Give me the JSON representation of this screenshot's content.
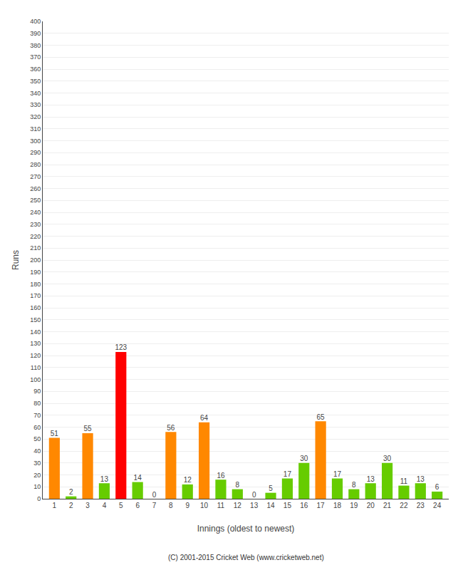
{
  "chart_data": {
    "type": "bar",
    "xlabel": "Innings (oldest to newest)",
    "ylabel": "Runs",
    "annotations": [
      "(C) 2001-2015 Cricket Web (www.cricketweb.net)"
    ],
    "x": [
      1,
      2,
      3,
      4,
      5,
      6,
      7,
      8,
      9,
      10,
      11,
      12,
      13,
      14,
      15,
      16,
      17,
      18,
      19,
      20,
      21,
      22,
      23,
      24
    ],
    "values": [
      51,
      2,
      55,
      13,
      123,
      14,
      0,
      56,
      12,
      64,
      16,
      8,
      0,
      5,
      17,
      30,
      65,
      17,
      8,
      13,
      30,
      11,
      13,
      6
    ],
    "colors": [
      "#ff8800",
      "#66cc00",
      "#ff8800",
      "#66cc00",
      "#ff0000",
      "#66cc00",
      "#66cc00",
      "#ff8800",
      "#66cc00",
      "#ff8800",
      "#66cc00",
      "#66cc00",
      "#66cc00",
      "#66cc00",
      "#66cc00",
      "#66cc00",
      "#ff8800",
      "#66cc00",
      "#66cc00",
      "#66cc00",
      "#66cc00",
      "#66cc00",
      "#66cc00",
      "#66cc00"
    ],
    "xlim": [
      0.3,
      24.7
    ],
    "xticks": [
      1,
      2,
      3,
      4,
      5,
      6,
      7,
      8,
      9,
      10,
      11,
      12,
      13,
      14,
      15,
      16,
      17,
      18,
      19,
      20,
      21,
      22,
      23,
      24
    ],
    "ylim": [
      0,
      400
    ],
    "yticks": [
      0,
      10,
      20,
      30,
      40,
      50,
      60,
      70,
      80,
      90,
      100,
      110,
      120,
      130,
      140,
      150,
      160,
      170,
      180,
      190,
      200,
      210,
      220,
      230,
      240,
      250,
      260,
      270,
      280,
      290,
      300,
      310,
      320,
      330,
      340,
      350,
      360,
      370,
      380,
      390,
      400
    ],
    "grid": "y",
    "data_labels": true
  }
}
